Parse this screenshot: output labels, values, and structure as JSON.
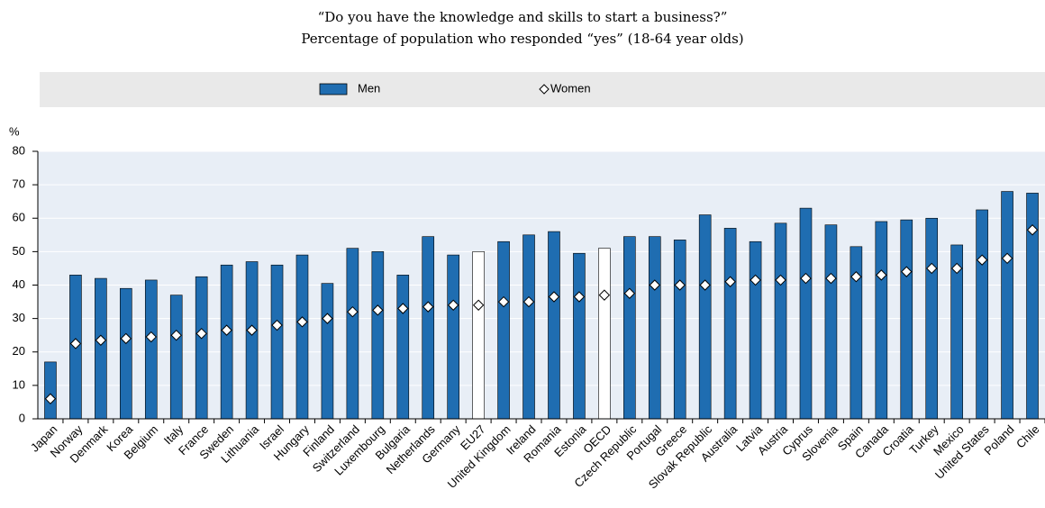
{
  "chart_data": {
    "type": "bar",
    "title": "“Do you have the knowledge and skills to start a business?”",
    "subtitle": "Percentage of population who responded “yes” (18-64 year olds)",
    "y_label": "%",
    "categories": [
      "Japan",
      "Norway",
      "Denmark",
      "Korea",
      "Belgium",
      "Italy",
      "France",
      "Sweden",
      "Lithuania",
      "Israel",
      "Hungary",
      "Finland",
      "Switzerland",
      "Luxembourg",
      "Bulgaria",
      "Netherlands",
      "Germany",
      "EU27",
      "United Kingdom",
      "Ireland",
      "Romania",
      "Estonia",
      "OECD",
      "Czech Republic",
      "Portugal",
      "Greece",
      "Slovak Republic",
      "Australia",
      "Latvia",
      "Austria",
      "Cyprus",
      "Slovenia",
      "Spain",
      "Canada",
      "Croatia",
      "Turkey",
      "Mexico",
      "United States",
      "Poland",
      "Chile"
    ],
    "series": [
      {
        "name": "Men",
        "type": "bar",
        "color": "#1f6db1",
        "colors": [
          "#1f6db1",
          "#1f6db1",
          "#1f6db1",
          "#1f6db1",
          "#1f6db1",
          "#1f6db1",
          "#1f6db1",
          "#1f6db1",
          "#1f6db1",
          "#1f6db1",
          "#1f6db1",
          "#1f6db1",
          "#1f6db1",
          "#1f6db1",
          "#1f6db1",
          "#1f6db1",
          "#1f6db1",
          "#ffffff",
          "#1f6db1",
          "#1f6db1",
          "#1f6db1",
          "#1f6db1",
          "#ffffff",
          "#1f6db1",
          "#1f6db1",
          "#1f6db1",
          "#1f6db1",
          "#1f6db1",
          "#1f6db1",
          "#1f6db1",
          "#1f6db1",
          "#1f6db1",
          "#1f6db1",
          "#1f6db1",
          "#1f6db1",
          "#1f6db1",
          "#1f6db1",
          "#1f6db1",
          "#1f6db1",
          "#1f6db1"
        ],
        "values": [
          17,
          43,
          42,
          39,
          41.5,
          37,
          42.5,
          46,
          47,
          46,
          49,
          40.5,
          51,
          50,
          43,
          54.5,
          49,
          50,
          53,
          55,
          56,
          49.5,
          51,
          54.5,
          54.5,
          53.5,
          61,
          57,
          53,
          58.5,
          63,
          58,
          51.5,
          59,
          59.5,
          60,
          52,
          62.5,
          68,
          67.5
        ]
      },
      {
        "name": "Women",
        "type": "marker",
        "color": "#ffffff",
        "values": [
          6,
          22.5,
          23.5,
          24,
          24.5,
          25,
          25.5,
          26.5,
          26.5,
          28,
          29,
          30,
          32,
          32.5,
          33,
          33.5,
          34,
          34,
          35,
          35,
          36.5,
          36.5,
          37,
          37.5,
          40,
          40,
          40,
          41,
          41.5,
          41.5,
          42,
          42,
          42.5,
          43,
          44,
          45,
          45,
          47.5,
          48,
          56.5
        ]
      }
    ],
    "ylim": [
      0,
      80
    ],
    "yticks": [
      0,
      10,
      20,
      30,
      40,
      50,
      60,
      70,
      80
    ],
    "grid": true,
    "legend": "top"
  }
}
